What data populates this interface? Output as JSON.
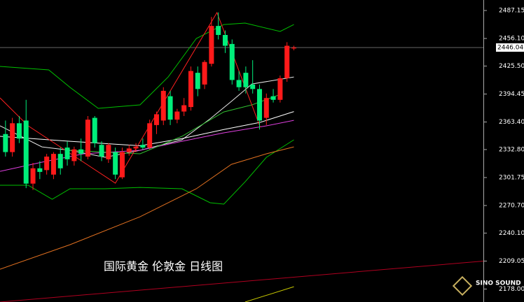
{
  "chart_data": {
    "type": "candlestick",
    "title": "国际黄金 伦敦金 日线图",
    "logo": "SINO SOUND",
    "xlim": [
      -0.8,
      69.6
    ],
    "ylim": [
      2163.6,
      2498.8
    ],
    "yticks": [
      2487.15,
      {
        "value": 2456.1,
        "label": "2456.10"
      },
      {
        "value": 2425.5,
        "label": "2425.50"
      },
      2394.45,
      {
        "value": 2363.4,
        "label": "2363.40"
      },
      {
        "value": 2332.8,
        "label": "2332.80"
      },
      2301.75,
      {
        "value": 2270.7,
        "label": "2270.70"
      },
      {
        "value": 2240.1,
        "label": "2240.10"
      },
      2209.05,
      {
        "value": 2178,
        "label": "2178.00"
      }
    ],
    "last_price": 2446.04,
    "up_color": "#ff1a1a",
    "down_color": "#00ee7a",
    "candles": {
      "open": [
        2350,
        2330,
        2362,
        2365,
        2295,
        2312,
        2310,
        2305,
        2328,
        2335,
        2320,
        2333,
        2325,
        2368,
        2338,
        2322,
        2330,
        2302,
        2330,
        2334,
        2338,
        2335,
        2360,
        2365,
        2392,
        2366,
        2375,
        2380,
        2418,
        2405,
        2428,
        2470,
        2460,
        2450,
        2410,
        2418,
        2405,
        2400,
        2368,
        2392,
        2388,
        2412,
        2445
      ],
      "high": [
        2365,
        2368,
        2370,
        2388,
        2318,
        2320,
        2328,
        2330,
        2335,
        2342,
        2336,
        2345,
        2370,
        2370,
        2342,
        2340,
        2335,
        2335,
        2338,
        2340,
        2345,
        2366,
        2375,
        2402,
        2398,
        2378,
        2390,
        2425,
        2425,
        2432,
        2480,
        2485,
        2465,
        2455,
        2420,
        2425,
        2432,
        2405,
        2395,
        2400,
        2415,
        2452,
        2448
      ],
      "low": [
        2325,
        2325,
        2340,
        2290,
        2288,
        2300,
        2305,
        2300,
        2305,
        2315,
        2315,
        2320,
        2322,
        2335,
        2320,
        2318,
        2300,
        2300,
        2326,
        2330,
        2333,
        2333,
        2350,
        2360,
        2360,
        2362,
        2370,
        2376,
        2392,
        2400,
        2425,
        2455,
        2440,
        2405,
        2398,
        2395,
        2395,
        2355,
        2360,
        2385,
        2385,
        2408,
        2443
      ],
      "close": [
        2330,
        2362,
        2345,
        2295,
        2312,
        2308,
        2325,
        2328,
        2312,
        2322,
        2333,
        2328,
        2366,
        2340,
        2325,
        2338,
        2305,
        2330,
        2334,
        2336,
        2335,
        2362,
        2372,
        2398,
        2366,
        2375,
        2382,
        2420,
        2400,
        2430,
        2470,
        2460,
        2448,
        2410,
        2402,
        2402,
        2400,
        2365,
        2390,
        2388,
        2412,
        2448,
        2446
      ]
    },
    "overlays": [
      {
        "color": "#00c000",
        "x": [
          -0.8,
          6.3,
          9.4,
          13.5,
          19.6,
          23.7,
          27.8,
          31.8,
          34.9,
          40,
          42
        ],
        "values": [
          2425.1,
          2421.2,
          2401.8,
          2378.5,
          2382.4,
          2413.4,
          2456.1,
          2471.6,
          2473.2,
          2463.9,
          2471.6
        ]
      },
      {
        "color": "#00c000",
        "x": [
          -0.8,
          3.3,
          6.8,
          9.4,
          14.5,
          19.6,
          25.7,
          29.8,
          31.8,
          34.9,
          38,
          42
        ],
        "values": [
          2293.2,
          2293.2,
          2277.6,
          2289.3,
          2289.3,
          2290.8,
          2289.3,
          2273.8,
          2272.2,
          2297,
          2324.2,
          2343.6
        ]
      },
      {
        "color": "#e8e8e8",
        "x": [
          -0.8,
          5.3,
          9.4,
          14.5,
          19.6,
          25.7,
          29.8,
          32.9,
          35.9,
          39,
          42
        ],
        "values": [
          2359.1,
          2335.8,
          2332,
          2324.2,
          2332,
          2343.6,
          2366.9,
          2386.3,
          2405.6,
          2409.5,
          2413.4
        ]
      },
      {
        "color": "#ffffff",
        "x": [
          -0.8,
          9.4,
          19.6,
          25.7,
          31.8,
          37.1,
          42
        ],
        "values": [
          2347.5,
          2342,
          2337,
          2345,
          2355,
          2363,
          2375
        ]
      },
      {
        "color": "#e040e0",
        "x": [
          -0.8,
          5.3,
          11.4,
          19.6,
          25.7,
          31.8,
          38,
          42
        ],
        "values": [
          2308.6,
          2318.8,
          2328.1,
          2332,
          2342,
          2351.4,
          2359.1,
          2365.3
        ]
      },
      {
        "color": "#e07020",
        "x": [
          -0.8,
          9.4,
          19.6,
          27.8,
          32.9,
          38,
          42
        ],
        "values": [
          2200,
          2227.2,
          2258.2,
          2289.3,
          2316.4,
          2328.1,
          2335.8
        ]
      },
      {
        "color": "#30c030",
        "x": [
          9.4,
          19.6,
          25.7,
          31.8,
          35.9,
          40
        ],
        "values": [
          2332,
          2328.1,
          2347.5,
          2374.6,
          2382.4,
          2394
        ]
      },
      {
        "color": "#ff2020",
        "x": [
          -0.8,
          3.3,
          16,
          30.8,
          37.1
        ],
        "values": [
          2390.2,
          2359.1,
          2295.5,
          2484.8,
          2357.6
        ]
      },
      {
        "color": "#b00020",
        "x": [
          -0.8,
          69.6
        ],
        "values": [
          2163.6,
          2209
        ]
      },
      {
        "color": "#c8c800",
        "x": [
          34.9,
          42
        ],
        "values": [
          2163.6,
          2180.6
        ]
      }
    ]
  }
}
